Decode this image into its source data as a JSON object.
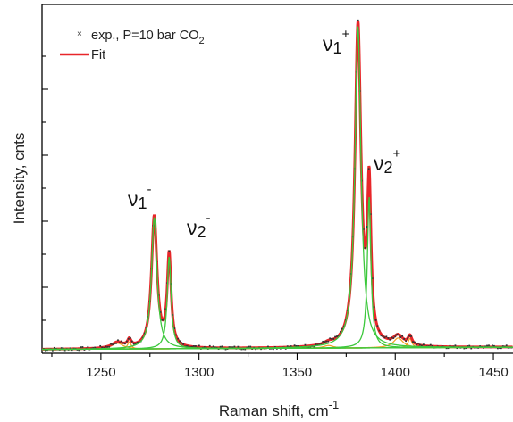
{
  "chart_data": {
    "type": "line",
    "xlabel": "Raman shift, cm",
    "xlabel_superscript": "-1",
    "ylabel": "Intensity, cnts",
    "xlim": [
      1220,
      1460
    ],
    "x_ticks": [
      1250,
      1300,
      1350,
      1400,
      1450
    ],
    "y_tick_labels": "none",
    "grid": false,
    "legend": {
      "placement": "top-left",
      "entries": [
        {
          "label": "exp., P=10 bar CO",
          "subscript": "2",
          "marker": "x-dot",
          "color": "#333333"
        },
        {
          "label": "Fit",
          "marker": "line",
          "color": "#e8262a"
        }
      ]
    },
    "annotations": [
      {
        "base": "ν",
        "sub": "1",
        "sup": "-",
        "x": 1277
      },
      {
        "base": "ν",
        "sub": "2",
        "sup": "-",
        "x": 1285
      },
      {
        "base": "ν",
        "sub": "1",
        "sup": "+",
        "x": 1381
      },
      {
        "base": "ν",
        "sub": "2",
        "sup": "+",
        "x": 1386
      }
    ],
    "colors": {
      "experimental": "#333333",
      "fit": "#e8262a",
      "main_components": "#3cc83c",
      "minor_components": "#f0a020",
      "baseline": "#444444"
    },
    "baseline": {
      "intercept": 0.012,
      "slope_per_cm": 2.8e-05,
      "ref_x": 1220
    },
    "peaks_main": [
      {
        "center": 1277.2,
        "height": 0.405,
        "width": 1.7
      },
      {
        "center": 1284.8,
        "height": 0.283,
        "width": 1.2
      },
      {
        "center": 1381.0,
        "height": 0.99,
        "width": 1.85
      },
      {
        "center": 1386.7,
        "height": 0.465,
        "width": 1.1
      }
    ],
    "peaks_minor": [
      {
        "center": 1258.5,
        "height": 0.018,
        "width": 3.5
      },
      {
        "center": 1264.5,
        "height": 0.022,
        "width": 1.1
      },
      {
        "center": 1366.0,
        "height": 0.008,
        "width": 3.0
      },
      {
        "center": 1401.5,
        "height": 0.03,
        "width": 3.0
      },
      {
        "center": 1407.5,
        "height": 0.028,
        "width": 1.2
      }
    ]
  }
}
